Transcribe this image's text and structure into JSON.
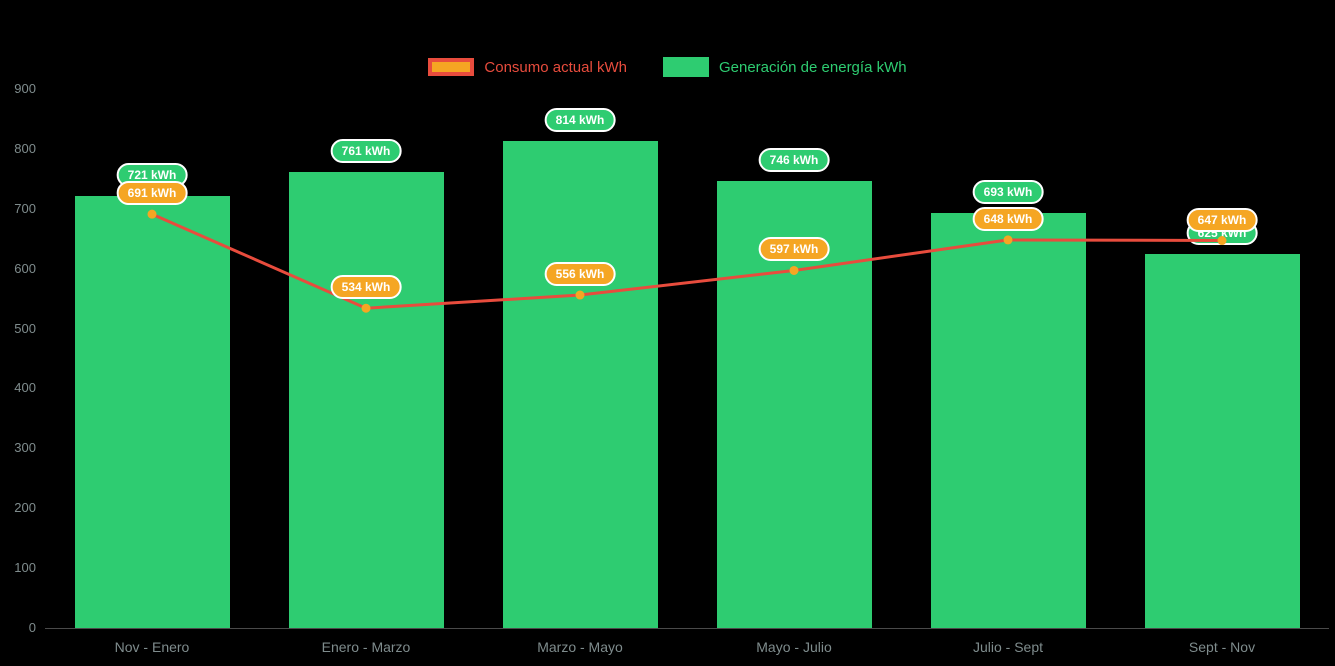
{
  "chart_data": {
    "type": "bar+line",
    "categories": [
      "Nov - Enero",
      "Enero - Marzo",
      "Marzo - Mayo",
      "Mayo - Julio",
      "Julio - Sept",
      "Sept - Nov"
    ],
    "series": [
      {
        "name": "Consumo actual kWh",
        "type": "line",
        "color": "#e84c3d",
        "marker_color": "#f5a623",
        "label_bg": "#f5a623",
        "values": [
          691,
          534,
          556,
          597,
          648,
          647
        ],
        "labels": [
          "691 kWh",
          "534 kWh",
          "556 kWh",
          "597 kWh",
          "648 kWh",
          "647 kWh"
        ]
      },
      {
        "name": "Generación de energía kWh",
        "type": "bar",
        "color": "#2ecc71",
        "label_bg": "#2ecc71",
        "values": [
          721,
          761,
          814,
          746,
          693,
          625
        ],
        "labels": [
          "721 kWh",
          "761 kWh",
          "814 kWh",
          "746 kWh",
          "693 kWh",
          "625 kWh"
        ]
      }
    ],
    "ylim": [
      0,
      900
    ],
    "yticks": [
      0,
      100,
      200,
      300,
      400,
      500,
      600,
      700,
      800,
      900
    ],
    "legend_position": "top-center",
    "unit": "kWh",
    "colors": {
      "background": "#000000",
      "axis_text": "#7f8c8d",
      "pill_border": "#ffffff",
      "pill_text": "#ffffff"
    }
  }
}
